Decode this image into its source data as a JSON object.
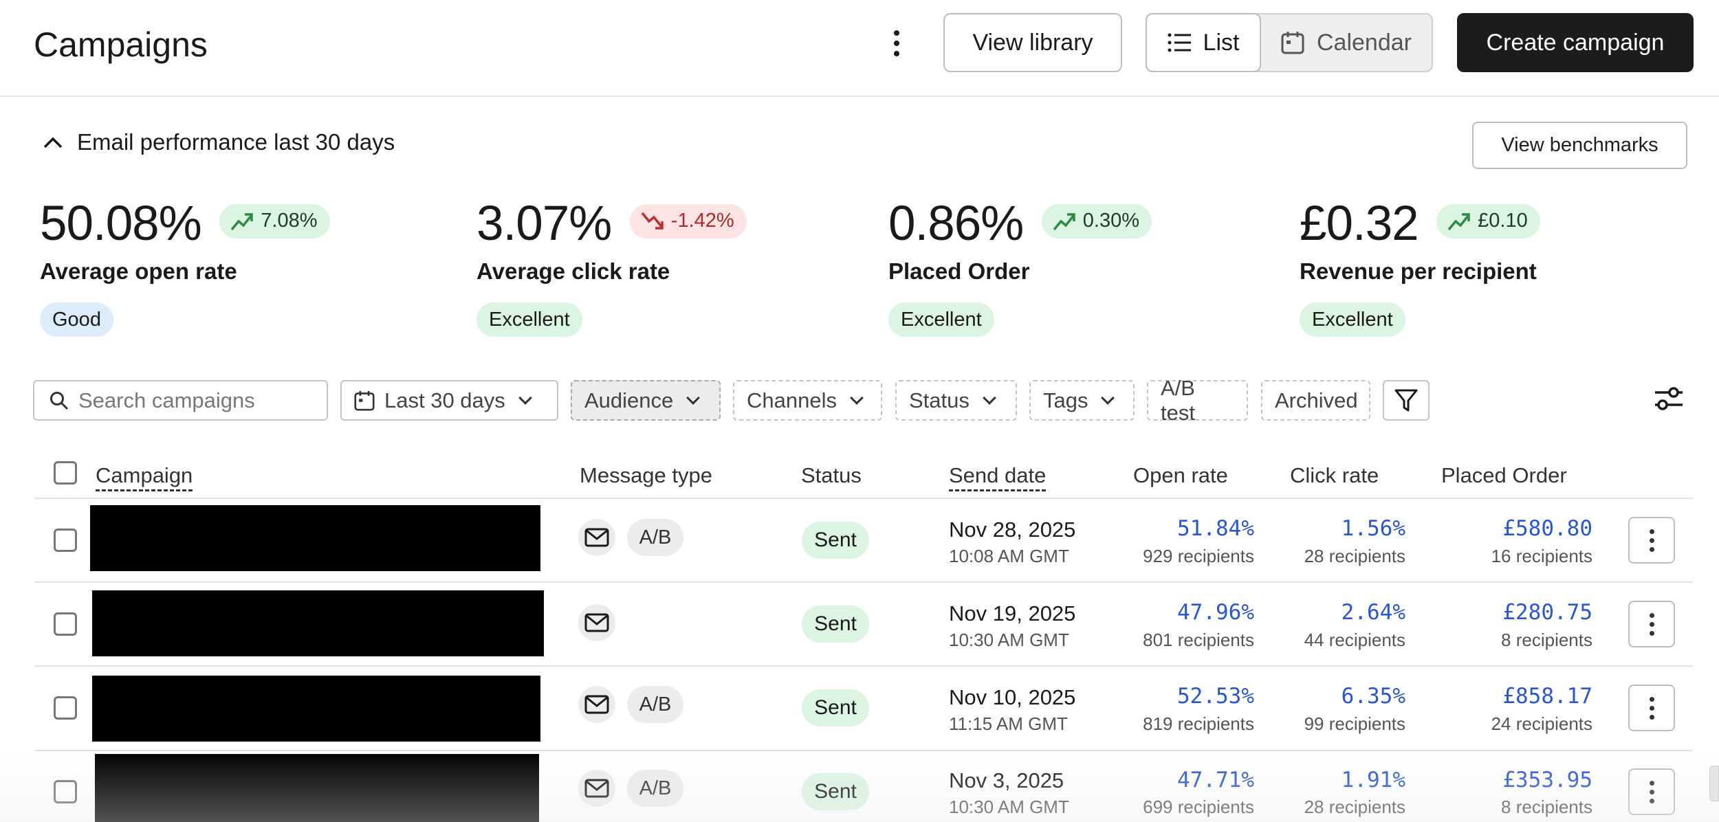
{
  "header": {
    "title": "Campaigns",
    "view_library": "View library",
    "list": "List",
    "calendar": "Calendar",
    "create_campaign": "Create campaign"
  },
  "performance": {
    "title": "Email performance last 30 days",
    "benchmarks": "View benchmarks",
    "metrics": [
      {
        "value": "50.08%",
        "trend": "7.08%",
        "direction": "up",
        "label": "Average open rate",
        "rating": "Good"
      },
      {
        "value": "3.07%",
        "trend": "-1.42%",
        "direction": "down",
        "label": "Average click rate",
        "rating": "Excellent"
      },
      {
        "value": "0.86%",
        "trend": "0.30%",
        "direction": "up",
        "label": "Placed Order",
        "rating": "Excellent"
      },
      {
        "value": "£0.32",
        "trend": "£0.10",
        "direction": "up",
        "label": "Revenue per recipient",
        "rating": "Excellent"
      }
    ]
  },
  "filters": {
    "search_placeholder": "Search campaigns",
    "date_range": "Last 30 days",
    "audience": "Audience",
    "channels": "Channels",
    "status": "Status",
    "tags": "Tags",
    "ab_test": "A/B test",
    "archived": "Archived"
  },
  "table": {
    "columns": [
      "Campaign",
      "Message type",
      "Status",
      "Send date",
      "Open rate",
      "Click rate",
      "Placed Order"
    ],
    "rows": [
      {
        "ab": "A/B",
        "status": "Sent",
        "date": "Nov 28, 2025",
        "time": "10:08 AM GMT",
        "open_rate": "51.84%",
        "open_recipients": "929 recipients",
        "click_rate": "1.56%",
        "click_recipients": "28 recipients",
        "placed_order": "£580.80",
        "placed_recipients": "16 recipients"
      },
      {
        "ab": "",
        "status": "Sent",
        "date": "Nov 19, 2025",
        "time": "10:30 AM GMT",
        "open_rate": "47.96%",
        "open_recipients": "801 recipients",
        "click_rate": "2.64%",
        "click_recipients": "44 recipients",
        "placed_order": "£280.75",
        "placed_recipients": "8 recipients"
      },
      {
        "ab": "A/B",
        "status": "Sent",
        "date": "Nov 10, 2025",
        "time": "11:15 AM GMT",
        "open_rate": "52.53%",
        "open_recipients": "819 recipients",
        "click_rate": "6.35%",
        "click_recipients": "99 recipients",
        "placed_order": "£858.17",
        "placed_recipients": "24 recipients"
      },
      {
        "ab": "A/B",
        "status": "Sent",
        "date": "Nov 3, 2025",
        "time": "10:30 AM GMT",
        "open_rate": "47.71%",
        "open_recipients": "699 recipients",
        "click_rate": "1.91%",
        "click_recipients": "28 recipients",
        "placed_order": "£353.95",
        "placed_recipients": "8 recipients"
      }
    ]
  },
  "colors": {
    "primary_button": "#1c1c1c",
    "link_value": "#2956d1",
    "positive_bg": "#dcf4e2",
    "negative_bg": "#fde3e3",
    "good_bg": "#dcecfb"
  }
}
